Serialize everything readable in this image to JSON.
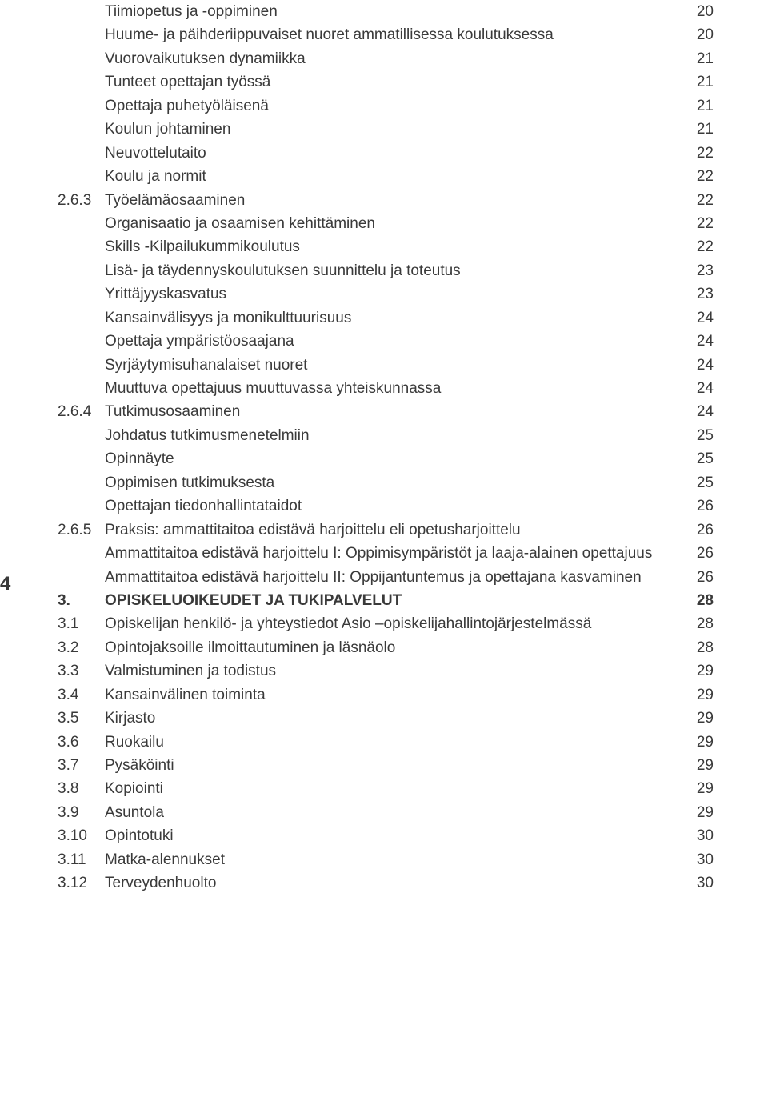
{
  "pageMarker": "4",
  "font": {
    "size": 19,
    "lineHeight": 1.55,
    "color": "#3a3a3a"
  },
  "rows": [
    {
      "num": "",
      "title": "Tiimiopetus ja -oppiminen",
      "page": "20",
      "bold": false
    },
    {
      "num": "",
      "title": "Huume- ja päihderiippuvaiset nuoret ammatillisessa koulutuksessa",
      "page": "20",
      "bold": false
    },
    {
      "num": "",
      "title": "Vuorovaikutuksen dynamiikka",
      "page": "21",
      "bold": false
    },
    {
      "num": "",
      "title": "Tunteet opettajan työssä",
      "page": "21",
      "bold": false
    },
    {
      "num": "",
      "title": "Opettaja puhetyöläisenä",
      "page": "21",
      "bold": false
    },
    {
      "num": "",
      "title": "Koulun johtaminen",
      "page": "21",
      "bold": false
    },
    {
      "num": "",
      "title": "Neuvottelutaito",
      "page": "22",
      "bold": false
    },
    {
      "num": "",
      "title": "Koulu ja normit",
      "page": "22",
      "bold": false
    },
    {
      "num": "2.6.3",
      "title": "Työelämäosaaminen",
      "page": "22",
      "bold": false
    },
    {
      "num": "",
      "title": "Organisaatio ja osaamisen kehittäminen",
      "page": "22",
      "bold": false
    },
    {
      "num": "",
      "title": "Skills -Kilpailukummikoulutus",
      "page": "22",
      "bold": false
    },
    {
      "num": "",
      "title": "Lisä- ja täydennyskoulutuksen suunnittelu ja toteutus",
      "page": "23",
      "bold": false
    },
    {
      "num": "",
      "title": "Yrittäjyyskasvatus",
      "page": "23",
      "bold": false
    },
    {
      "num": "",
      "title": "Kansainvälisyys ja monikulttuurisuus",
      "page": "24",
      "bold": false
    },
    {
      "num": "",
      "title": "Opettaja ympäristöosaajana",
      "page": "24",
      "bold": false
    },
    {
      "num": "",
      "title": "Syrjäytymisuhanalaiset nuoret",
      "page": "24",
      "bold": false
    },
    {
      "num": "",
      "title": "Muuttuva opettajuus muuttuvassa yhteiskunnassa",
      "page": "24",
      "bold": false
    },
    {
      "num": "2.6.4",
      "title": "Tutkimusosaaminen",
      "page": "24",
      "bold": false
    },
    {
      "num": "",
      "title": "Johdatus tutkimusmenetelmiin",
      "page": "25",
      "bold": false
    },
    {
      "num": "",
      "title": "Opinnäyte",
      "page": "25",
      "bold": false
    },
    {
      "num": "",
      "title": "Oppimisen tutkimuksesta",
      "page": "25",
      "bold": false
    },
    {
      "num": "",
      "title": "Opettajan tiedonhallintataidot",
      "page": "26",
      "bold": false
    },
    {
      "num": "2.6.5",
      "title": "Praksis: ammattitaitoa edistävä harjoittelu eli opetusharjoittelu",
      "page": "26",
      "bold": false
    },
    {
      "num": "",
      "title": "Ammattitaitoa edistävä harjoittelu I: Oppimisympäristöt ja laaja-alainen opettajuus",
      "page": "26",
      "bold": false
    },
    {
      "num": "",
      "title": "Ammattitaitoa edistävä harjoittelu II: Oppijantuntemus ja opettajana kasvaminen",
      "page": "26",
      "bold": false
    },
    {
      "num": "3.",
      "title": "OPISKELUOIKEUDET JA TUKIPALVELUT",
      "page": "28",
      "bold": true
    },
    {
      "num": "3.1",
      "title": "Opiskelijan henkilö- ja yhteystiedot Asio –opiskelijahallintojärjestelmässä",
      "page": "28",
      "bold": false
    },
    {
      "num": "3.2",
      "title": "Opintojaksoille ilmoittautuminen ja läsnäolo",
      "page": "28",
      "bold": false
    },
    {
      "num": "3.3",
      "title": "Valmistuminen ja todistus",
      "page": "29",
      "bold": false
    },
    {
      "num": "3.4",
      "title": "Kansainvälinen toiminta",
      "page": "29",
      "bold": false
    },
    {
      "num": "3.5",
      "title": "Kirjasto",
      "page": "29",
      "bold": false
    },
    {
      "num": "3.6",
      "title": "Ruokailu",
      "page": "29",
      "bold": false
    },
    {
      "num": "3.7",
      "title": "Pysäköinti",
      "page": "29",
      "bold": false
    },
    {
      "num": "3.8",
      "title": "Kopiointi",
      "page": "29",
      "bold": false
    },
    {
      "num": "3.9",
      "title": "Asuntola",
      "page": "29",
      "bold": false
    },
    {
      "num": "3.10",
      "title": "Opintotuki",
      "page": "30",
      "bold": false
    },
    {
      "num": "3.11",
      "title": "Matka-alennukset",
      "page": "30",
      "bold": false
    },
    {
      "num": "3.12",
      "title": "Terveydenhuolto",
      "page": "30",
      "bold": false
    }
  ]
}
